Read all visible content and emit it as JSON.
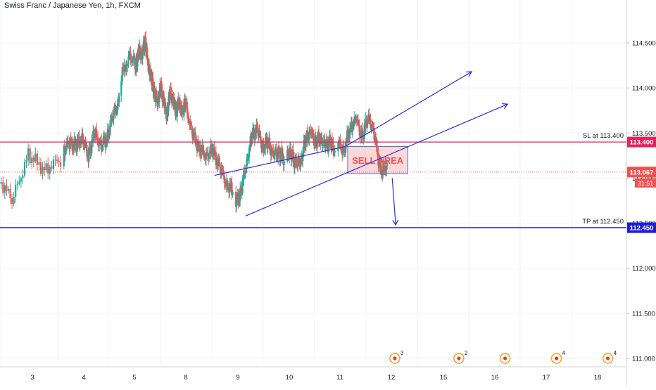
{
  "header": {
    "title": "Swiss Franc / Japanese Yen, 1h, FXCM"
  },
  "chart_data": {
    "type": "candlestick",
    "title": "Swiss Franc / Japanese Yen, 1h, FXCM",
    "xlabel": "",
    "ylabel": "",
    "ylim": [
      110.9,
      114.85
    ],
    "x_tick_labels": [
      "3",
      "4",
      "5",
      "8",
      "9",
      "10",
      "11",
      "12",
      "15",
      "16",
      "17",
      "18"
    ],
    "y_tick_labels": [
      "114.500",
      "114.000",
      "113.500",
      "113.000",
      "112.500",
      "112.000",
      "111.500",
      "111.000"
    ],
    "y_ticks": [
      114.5,
      114.0,
      113.5,
      113.0,
      112.5,
      112.0,
      111.5,
      111.0
    ],
    "colors": {
      "up": "#26a69a",
      "down": "#ef5350",
      "sl": "#e0245e",
      "tp": "#1e1ed2",
      "channel": "#2d2dd6",
      "price": "#ef5350"
    },
    "path": [
      [
        112.0,
        112.6,
        112.9,
        113.1,
        113.15,
        112.95,
        113.05,
        113.0,
        113.2,
        113.05,
        112.75,
        113.25,
        113.1,
        113.2
      ],
      [
        113.3,
        113.4,
        113.35,
        113.45,
        113.25,
        113.5,
        113.35,
        113.45,
        113.7,
        113.85
      ],
      [
        114.1,
        114.35,
        114.25,
        114.4,
        114.35,
        114.55,
        114.25,
        114.1,
        113.95,
        113.85,
        114.0,
        113.85,
        113.7,
        113.95,
        113.85,
        113.75,
        113.85,
        113.7
      ],
      [
        113.75,
        113.85,
        113.5,
        113.35,
        113.25,
        113.3,
        113.15,
        112.95,
        112.85
      ],
      [
        112.7,
        112.85,
        113.15,
        113.45,
        113.55,
        113.35,
        113.4,
        113.25,
        113.3,
        113.2
      ],
      [
        113.3,
        113.25,
        113.15,
        113.2,
        113.45,
        113.5,
        113.4,
        113.45,
        113.35,
        113.4,
        113.3
      ],
      [
        113.4,
        113.3,
        113.55,
        113.65,
        113.45,
        113.7,
        113.45,
        113.05,
        113.15
      ]
    ],
    "annotations": {
      "sl": {
        "value": 113.4,
        "label": "SL at 113.400",
        "tag": "113.400"
      },
      "tp": {
        "value": 112.45,
        "label": "TP at 112.450",
        "tag": "112.450"
      },
      "current_price": {
        "value": 113.067,
        "tag": "113.067",
        "countdown": "31:51"
      },
      "sell_area": {
        "label": "SELL AREA",
        "x_from": 11.15,
        "x_to": 12.95,
        "y_from": 113.05,
        "y_to": 113.35
      },
      "channel_upper": {
        "x": [
          11.1,
          15.55
        ],
        "y": [
          113.35,
          114.18
        ]
      },
      "channel_lower": {
        "x": [
          9.15,
          16.25
        ],
        "y": [
          112.58,
          113.82
        ]
      },
      "channel_left": {
        "x": [
          8.55,
          11.1
        ],
        "y": [
          113.03,
          113.35
        ]
      },
      "projection_arrow": {
        "x": [
          12.05,
          12.25
        ],
        "y": [
          113.0,
          112.48
        ]
      }
    },
    "events": [
      {
        "x": 12.2,
        "count": "3"
      },
      {
        "x": 15.3,
        "count": "2"
      },
      {
        "x": 16.2,
        "count": ""
      },
      {
        "x": 17.2,
        "count": "4"
      },
      {
        "x": 18.2,
        "count": "4"
      }
    ],
    "grid": true,
    "legend": "none"
  }
}
